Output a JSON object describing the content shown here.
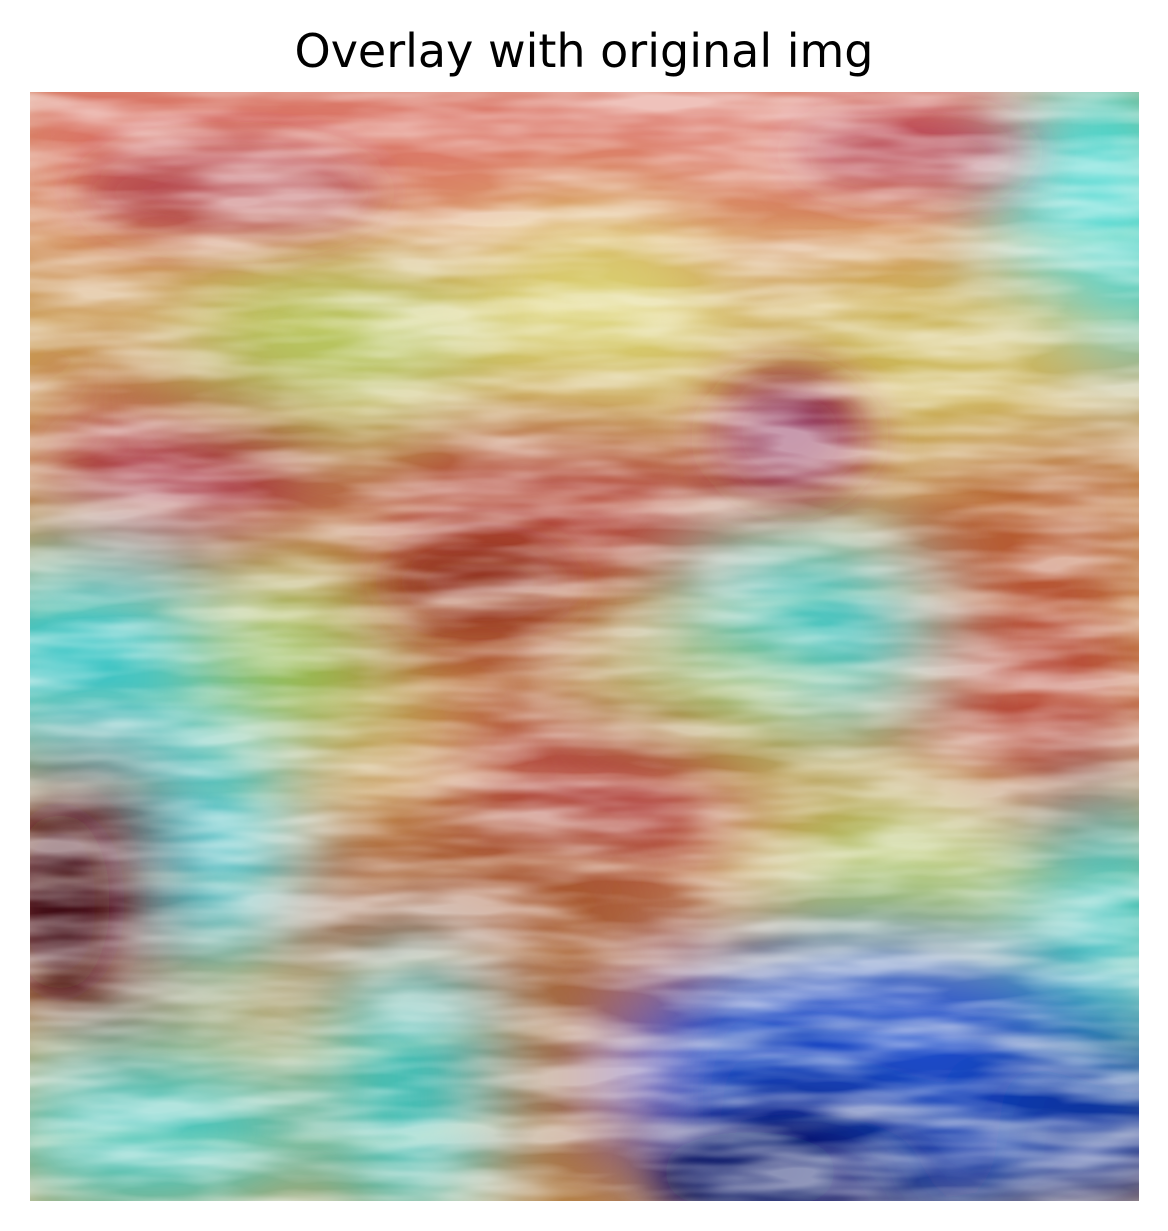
{
  "figure": {
    "title": "Overlay with original img"
  },
  "image": {
    "description_tag": "heatmap-overlay-on-water-surface",
    "colors": {
      "hot": "#a01a2a",
      "warm": "#e07a55",
      "mid": "#e8d070",
      "green": "#9acc60",
      "cyan": "#40d0d0",
      "blue": "#1840c0",
      "deep": "#0a1a70"
    }
  }
}
